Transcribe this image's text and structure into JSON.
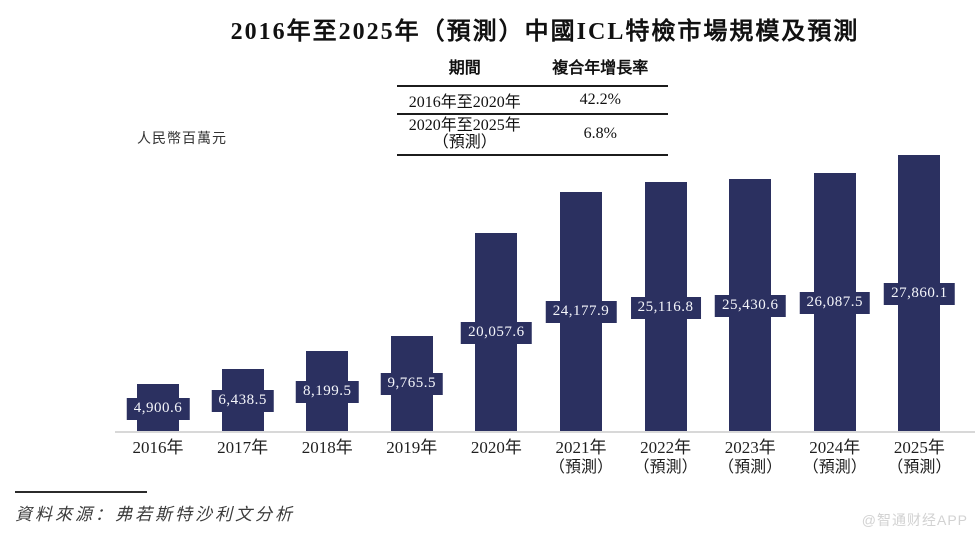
{
  "title": "2016年至2025年（預測）中國ICL特檢市場規模及預測",
  "unit_label": "人民幣百萬元",
  "growth_table": {
    "headers": [
      "期間",
      "複合年增長率"
    ],
    "rows": [
      {
        "period": "2016年至2020年",
        "period_line2": "",
        "cagr": "42.2%"
      },
      {
        "period": "2020年至2025年",
        "period_line2": "（預測）",
        "cagr": "6.8%"
      }
    ]
  },
  "chart_data": {
    "type": "bar",
    "title": "2016年至2025年（預測）中國ICL特檢市場規模及預測",
    "xlabel": "",
    "ylabel": "人民幣百萬元",
    "ylim": [
      0,
      27860.1
    ],
    "grid": false,
    "legend": false,
    "categories": [
      "2016年",
      "2017年",
      "2018年",
      "2019年",
      "2020年",
      "2021年",
      "2022年",
      "2023年",
      "2024年",
      "2025年"
    ],
    "category_sublabels": [
      "",
      "",
      "",
      "",
      "",
      "（預測）",
      "（預測）",
      "（預測）",
      "（預測）",
      "（預測）"
    ],
    "values": [
      4900.6,
      6438.5,
      8199.5,
      9765.5,
      20057.6,
      24177.9,
      25116.8,
      25430.6,
      26087.5,
      27860.1
    ],
    "value_labels": [
      "4,900.6",
      "6,438.5",
      "8,199.5",
      "9,765.5",
      "20,057.6",
      "24,177.9",
      "25,116.8",
      "25,430.6",
      "26,087.5",
      "27,860.1"
    ],
    "annotations": [
      {
        "period": "2016年至2020年",
        "cagr_percent": 42.2
      },
      {
        "period": "2020年至2025年（預測）",
        "cagr_percent": 6.8
      }
    ],
    "bar_color": "#2b3060",
    "value_label_bg": "#2b3060",
    "value_label_text": "#f4f5fa"
  },
  "source": {
    "label": "資料來源：弗若斯特沙利文分析"
  },
  "watermark": "@智通财经APP"
}
